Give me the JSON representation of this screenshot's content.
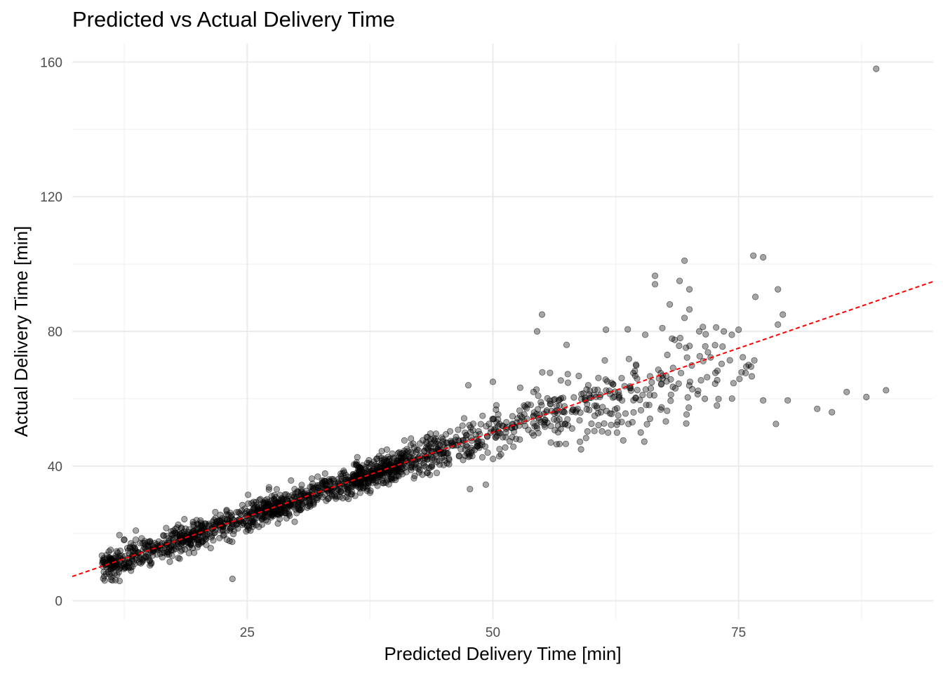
{
  "chart_data": {
    "type": "scatter",
    "title": "Predicted vs Actual Delivery Time",
    "xlabel": "Predicted Delivery Time [min]",
    "ylabel": "Actual Delivery Time [min]",
    "xlim": [
      7.2,
      94.8
    ],
    "ylim": [
      -5.5,
      165.5
    ],
    "x_ticks": [
      25,
      50,
      75
    ],
    "y_ticks": [
      0,
      40,
      80,
      120,
      160
    ],
    "grid": true,
    "point_color": "#000000",
    "point_alpha": 0.35,
    "reference_line": {
      "style": "dashed",
      "color": "#ff0000",
      "slope": 1.0,
      "intercept": 0
    },
    "highlighted_points": [
      [
        89.0,
        158.0
      ],
      [
        76.5,
        102.5
      ],
      [
        77.5,
        102.0
      ],
      [
        69.5,
        101.0
      ],
      [
        66.5,
        96.5
      ],
      [
        69.0,
        95.0
      ],
      [
        70.0,
        92.5
      ],
      [
        79.0,
        92.5
      ],
      [
        66.5,
        94.0
      ],
      [
        68.0,
        88.0
      ],
      [
        70.0,
        86.5
      ],
      [
        55.0,
        85.0
      ],
      [
        79.5,
        85.0
      ],
      [
        69.5,
        84.0
      ],
      [
        79.0,
        82.0
      ],
      [
        54.5,
        80.0
      ],
      [
        61.5,
        80.5
      ],
      [
        73.5,
        80.0
      ],
      [
        75.0,
        80.5
      ],
      [
        65.5,
        79.0
      ],
      [
        71.0,
        80.0
      ],
      [
        57.5,
        76.0
      ],
      [
        68.5,
        77.5
      ],
      [
        83.0,
        57.0
      ],
      [
        84.5,
        56.0
      ],
      [
        86.0,
        62.0
      ],
      [
        88.0,
        60.5
      ],
      [
        90.0,
        62.5
      ],
      [
        80.0,
        59.5
      ],
      [
        77.5,
        59.5
      ],
      [
        47.5,
        64.0
      ],
      [
        50.0,
        65.0
      ],
      [
        23.5,
        6.5
      ],
      [
        12.0,
        19.5
      ],
      [
        10.5,
        6.0
      ]
    ],
    "n_points": 1700
  }
}
